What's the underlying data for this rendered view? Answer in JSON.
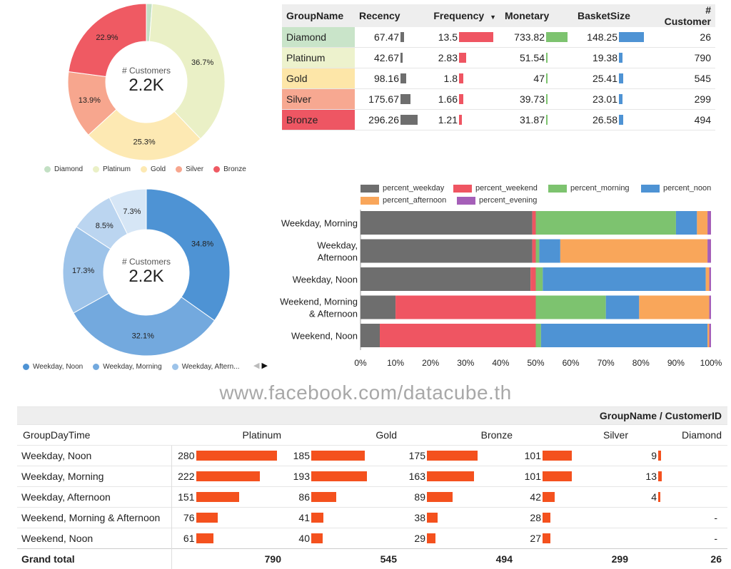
{
  "tier_donut": {
    "center_label": "# Customers",
    "center_value": "2.2K",
    "slices": [
      {
        "label": "Diamond",
        "value": 1.2,
        "display": "",
        "color": "#c3e0c4"
      },
      {
        "label": "Platinum",
        "value": 36.7,
        "display": "36.7%",
        "color": "#eaf0c6"
      },
      {
        "label": "Gold",
        "value": 25.3,
        "display": "25.3%",
        "color": "#fde9b3"
      },
      {
        "label": "Silver",
        "value": 13.9,
        "display": "13.9%",
        "color": "#f7a68e"
      },
      {
        "label": "Bronze",
        "value": 22.9,
        "display": "22.9%",
        "color": "#ef5a63"
      }
    ]
  },
  "time_donut": {
    "center_label": "# Customers",
    "center_value": "2.2K",
    "slices": [
      {
        "label": "Weekday, Noon",
        "value": 34.8,
        "display": "34.8%",
        "color": "#4e93d4"
      },
      {
        "label": "Weekday, Morning",
        "value": 32.1,
        "display": "32.1%",
        "color": "#73a9de"
      },
      {
        "label": "Weekday, Afternoon",
        "value": 17.3,
        "display": "17.3%",
        "color": "#9dc3e9"
      },
      {
        "label": "Weekend, Morning & Afternoon",
        "value": 8.5,
        "display": "8.5%",
        "color": "#bbd5f0"
      },
      {
        "label": "Weekend, Noon",
        "value": 7.3,
        "display": "7.3%",
        "color": "#d6e6f6"
      }
    ],
    "legend": [
      "Weekday, Noon",
      "Weekday, Morning",
      "Weekday, Aftern..."
    ]
  },
  "summary_table": {
    "headers": [
      "GroupName",
      "Recency",
      "Frequency",
      "Monetary",
      "BasketSize",
      "# Customer"
    ],
    "sort_indicator": "▼",
    "rows": [
      {
        "name": "Diamond",
        "color": "#c9e4c9",
        "recency": 67.47,
        "frequency": 13.5,
        "monetary": 733.82,
        "basket": 148.25,
        "customers": 26
      },
      {
        "name": "Platinum",
        "color": "#edf2cd",
        "recency": 42.67,
        "frequency": 2.83,
        "monetary": 51.54,
        "basket": 19.38,
        "customers": 790
      },
      {
        "name": "Gold",
        "color": "#fde6a8",
        "recency": 98.16,
        "frequency": 1.8,
        "monetary": 47,
        "basket": 25.41,
        "customers": 545
      },
      {
        "name": "Silver",
        "color": "#f7a891",
        "recency": 175.67,
        "frequency": 1.66,
        "monetary": 39.73,
        "basket": 23.01,
        "customers": 299
      },
      {
        "name": "Bronze",
        "color": "#ee5663",
        "recency": 296.26,
        "frequency": 1.21,
        "monetary": 31.87,
        "basket": 26.58,
        "customers": 494
      }
    ],
    "bar_colors": {
      "recency": "#6e6e6e",
      "frequency": "#ef5562",
      "monetary": "#7dc36f",
      "basket": "#4e93d4"
    }
  },
  "chart_data": {
    "type": "bar",
    "orientation": "horizontal",
    "stacked": "percent",
    "categories": [
      "Weekday, Morning",
      "Weekday,\nAfternoon",
      "Weekday, Noon",
      "Weekend, Morning\n& Afternoon",
      "Weekend, Noon"
    ],
    "series": [
      {
        "name": "percent_weekday",
        "color": "#6e6e6e",
        "values": [
          49,
          49,
          48.5,
          10,
          5.5
        ]
      },
      {
        "name": "percent_weekend",
        "color": "#ef5562",
        "values": [
          1,
          1,
          1.5,
          40,
          44.5
        ]
      },
      {
        "name": "percent_morning",
        "color": "#7dc36f",
        "values": [
          40,
          1,
          2,
          20,
          1.5
        ]
      },
      {
        "name": "percent_noon",
        "color": "#4e93d4",
        "values": [
          6,
          6,
          46.5,
          9.5,
          47.5
        ]
      },
      {
        "name": "percent_afternoon",
        "color": "#f9a65a",
        "values": [
          3,
          42,
          1,
          20,
          0.5
        ]
      },
      {
        "name": "percent_evening",
        "color": "#a55fb8",
        "values": [
          1,
          1,
          0.5,
          0.5,
          0.5
        ]
      }
    ],
    "xticks": [
      "0%",
      "10%",
      "20%",
      "30%",
      "40%",
      "50%",
      "60%",
      "70%",
      "80%",
      "90%",
      "100%"
    ],
    "xlim": [
      0,
      100
    ],
    "legend_position": "top"
  },
  "watermark": "www.facebook.com/datacube.th",
  "pivot": {
    "group_header": "GroupName / CustomerID",
    "row_header": "GroupDayTime",
    "columns": [
      "Platinum",
      "Gold",
      "Bronze",
      "Silver",
      "Diamond"
    ],
    "bar_color": "#f4511e",
    "rows": [
      {
        "label": "Weekday, Noon",
        "values": [
          "280",
          "185",
          "175",
          "101",
          "9"
        ]
      },
      {
        "label": "Weekday, Morning",
        "values": [
          "222",
          "193",
          "163",
          "101",
          "13"
        ]
      },
      {
        "label": "Weekday, Afternoon",
        "values": [
          "151",
          "86",
          "89",
          "42",
          "4"
        ]
      },
      {
        "label": "Weekend, Morning & Afternoon",
        "values": [
          "76",
          "41",
          "38",
          "28",
          "-"
        ]
      },
      {
        "label": "Weekend, Noon",
        "values": [
          "61",
          "40",
          "29",
          "27",
          "-"
        ]
      }
    ],
    "total_label": "Grand total",
    "totals": [
      "790",
      "545",
      "494",
      "299",
      "26"
    ]
  },
  "pager": {
    "prev": "◀",
    "next": "▶"
  }
}
